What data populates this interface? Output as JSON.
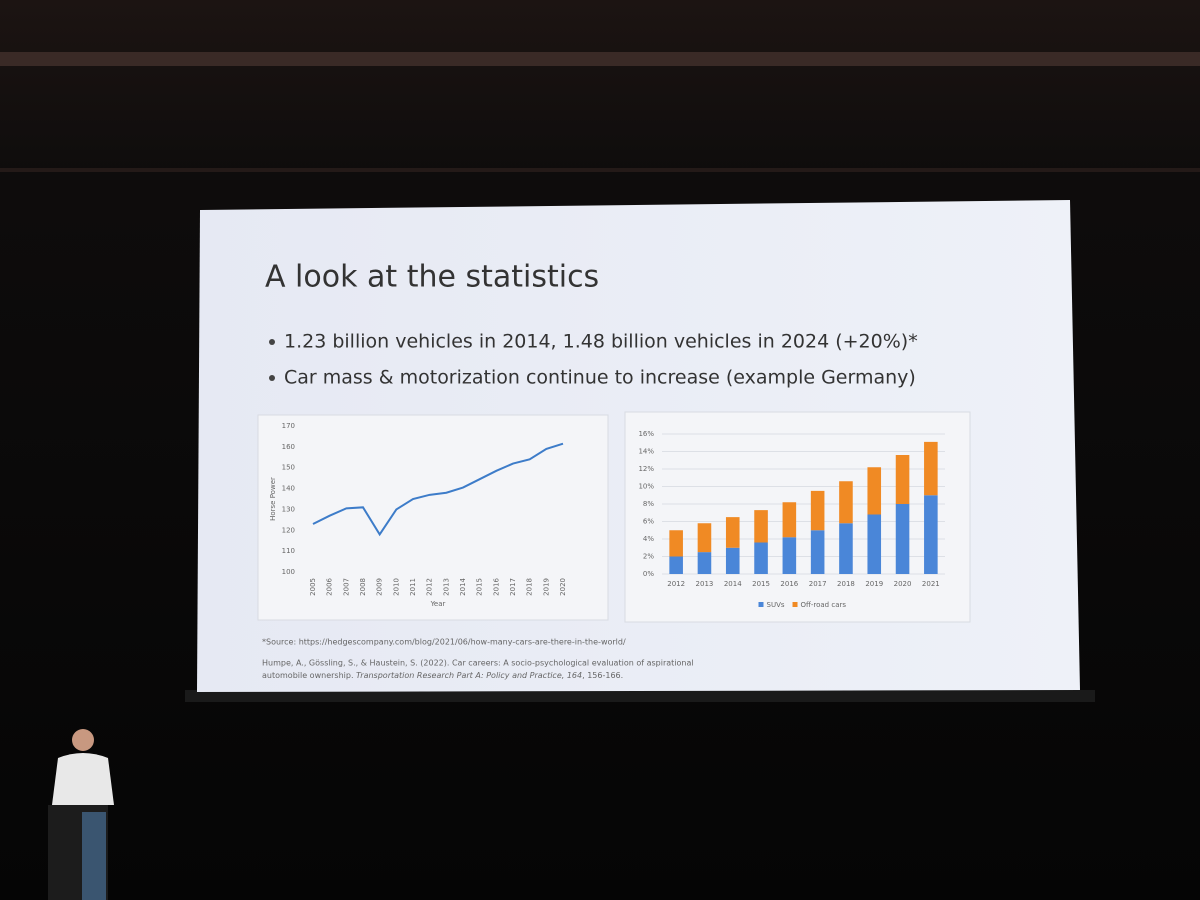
{
  "slide": {
    "title": "A look at the statistics",
    "bullets": [
      "1.23 billion vehicles in 2014, 1.48 billion vehicles in 2024 (+20%)*",
      "Car mass & motorization continue to increase (example Germany)"
    ],
    "source": "*Source: https://hedgescompany.com/blog/2021/06/how-many-cars-are-there-in-the-world/",
    "citation": [
      "Humpe, A., Gössling, S., & Haustein, S. (2022). Car careers: A socio-psychological evaluation of aspirational",
      "automobile ownership. ",
      "Transportation Research Part A: Policy and Practice, 164",
      ", 156-166."
    ]
  },
  "chart_data": [
    {
      "type": "line",
      "xlabel": "Year",
      "ylabel": "Horse Power",
      "color": "#3d7cc9",
      "grid": false,
      "categories": [
        "2005",
        "2006",
        "2007",
        "2008",
        "2009",
        "2010",
        "2011",
        "2012",
        "2013",
        "2014",
        "2015",
        "2016",
        "2017",
        "2018",
        "2019",
        "2020"
      ],
      "values": [
        123,
        127,
        130.5,
        131,
        118,
        130,
        135,
        137,
        138,
        140.5,
        144.5,
        148.5,
        152,
        154,
        159,
        161.5
      ],
      "ylim": [
        100,
        170
      ],
      "yticks": [
        100,
        110,
        120,
        130,
        140,
        150,
        160,
        170
      ]
    },
    {
      "type": "bar",
      "stacked": true,
      "grid": true,
      "legend": "bottom",
      "categories": [
        "2012",
        "2013",
        "2014",
        "2015",
        "2016",
        "2017",
        "2018",
        "2019",
        "2020",
        "2021"
      ],
      "series": [
        {
          "name": "SUVs",
          "color": "#4a86d8",
          "values": [
            2.0,
            2.5,
            3.0,
            3.6,
            4.2,
            5.0,
            5.8,
            6.8,
            8.0,
            9.0
          ]
        },
        {
          "name": "Off-road cars",
          "color": "#f08a24",
          "values": [
            3.0,
            3.3,
            3.5,
            3.7,
            4.0,
            4.5,
            4.8,
            5.4,
            5.6,
            6.1
          ]
        }
      ],
      "ylim": [
        0,
        16
      ],
      "yticks": [
        {
          "value": 0,
          "label": "0%"
        },
        {
          "value": 2,
          "label": "2%"
        },
        {
          "value": 4,
          "label": "4%"
        },
        {
          "value": 6,
          "label": "6%"
        },
        {
          "value": 8,
          "label": "8%"
        },
        {
          "value": 10,
          "label": "10%"
        },
        {
          "value": 12,
          "label": "12%"
        },
        {
          "value": 14,
          "label": "14%"
        },
        {
          "value": 16,
          "label": "16%"
        }
      ]
    }
  ]
}
